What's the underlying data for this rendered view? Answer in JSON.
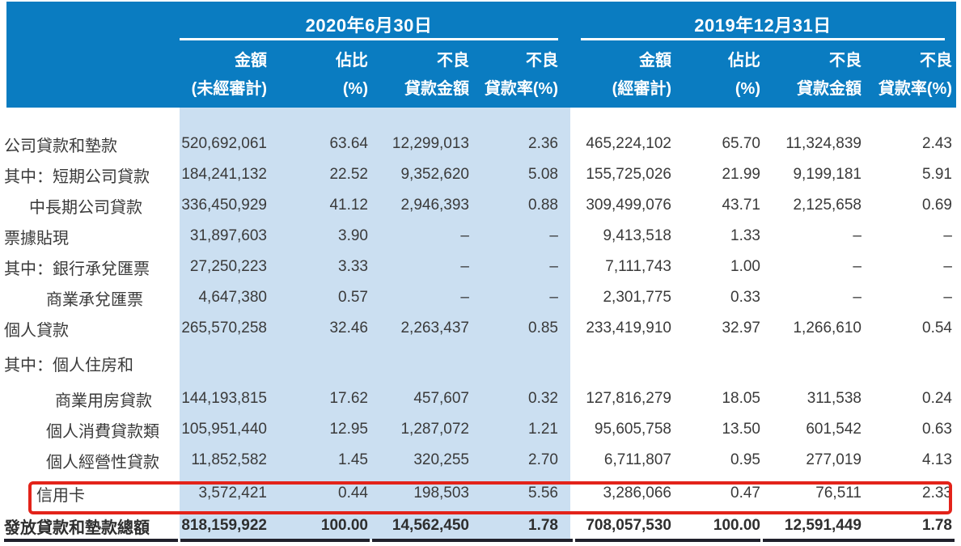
{
  "table": {
    "period_groups": [
      {
        "date": "2020年6月30日",
        "columns": [
          {
            "line1": "金額",
            "line2": "(未經審計)"
          },
          {
            "line1": "佔比",
            "line2": "(%)"
          },
          {
            "line1": "不良",
            "line2": "貸款金額"
          },
          {
            "line1": "不良",
            "line2": "貸款率(%)"
          }
        ]
      },
      {
        "date": "2019年12月31日",
        "columns": [
          {
            "line1": "金額",
            "line2": "(經審計)"
          },
          {
            "line1": "佔比",
            "line2": "(%)"
          },
          {
            "line1": "不良",
            "line2": "貸款金額"
          },
          {
            "line1": "不良",
            "line2": "貸款率(%)"
          }
        ]
      }
    ],
    "rows": [
      {
        "label": "公司貸款和墊款",
        "indent": 0,
        "bold": false,
        "highlighted": false,
        "values": [
          "520,692,061",
          "63.64",
          "12,299,013",
          "2.36",
          "465,224,102",
          "65.70",
          "11,324,839",
          "2.43"
        ]
      },
      {
        "label": "其中：短期公司貸款",
        "indent": 0,
        "bold": false,
        "highlighted": false,
        "values": [
          "184,241,132",
          "22.52",
          "9,352,620",
          "5.08",
          "155,725,026",
          "21.99",
          "9,199,181",
          "5.91"
        ]
      },
      {
        "label": "中長期公司貸款",
        "indent": 1,
        "bold": false,
        "highlighted": false,
        "values": [
          "336,450,929",
          "41.12",
          "2,946,393",
          "0.88",
          "309,499,076",
          "43.71",
          "2,125,658",
          "0.69"
        ]
      },
      {
        "label": "票據貼現",
        "indent": 0,
        "bold": false,
        "highlighted": false,
        "values": [
          "31,897,603",
          "3.90",
          "–",
          "–",
          "9,413,518",
          "1.33",
          "–",
          "–"
        ]
      },
      {
        "label": "其中：銀行承兌匯票",
        "indent": 0,
        "bold": false,
        "highlighted": false,
        "values": [
          "27,250,223",
          "3.33",
          "–",
          "–",
          "7,111,743",
          "1.00",
          "–",
          "–"
        ]
      },
      {
        "label": "商業承兌匯票",
        "indent": 2,
        "bold": false,
        "highlighted": false,
        "values": [
          "4,647,380",
          "0.57",
          "–",
          "–",
          "2,301,775",
          "0.33",
          "–",
          "–"
        ]
      },
      {
        "label": "個人貸款",
        "indent": 0,
        "bold": false,
        "highlighted": false,
        "values": [
          "265,570,258",
          "32.46",
          "2,263,437",
          "0.85",
          "233,419,910",
          "32.97",
          "1,266,610",
          "0.54"
        ]
      },
      {
        "label": "其中：個人住房和",
        "indent": 0,
        "bold": false,
        "highlighted": false,
        "values": [
          "",
          "",
          "",
          "",
          "",
          "",
          "",
          ""
        ]
      },
      {
        "label": "商業用房貸款",
        "indent": 3,
        "bold": false,
        "highlighted": false,
        "values": [
          "144,193,815",
          "17.62",
          "457,607",
          "0.32",
          "127,816,279",
          "18.05",
          "311,538",
          "0.24"
        ]
      },
      {
        "label": "個人消費貸款類",
        "indent": 2,
        "bold": false,
        "highlighted": false,
        "values": [
          "105,951,440",
          "12.95",
          "1,287,072",
          "1.21",
          "95,605,758",
          "13.50",
          "601,542",
          "0.63"
        ]
      },
      {
        "label": "個人經營性貸款",
        "indent": 2,
        "bold": false,
        "highlighted": false,
        "values": [
          "11,852,582",
          "1.45",
          "320,255",
          "2.70",
          "6,711,807",
          "0.95",
          "277,019",
          "4.13"
        ]
      },
      {
        "label": "信用卡",
        "indent": 4,
        "bold": false,
        "highlighted": true,
        "values": [
          "3,572,421",
          "0.44",
          "198,503",
          "5.56",
          "3,286,066",
          "0.47",
          "76,511",
          "2.33"
        ]
      },
      {
        "label": "發放貸款和墊款總額",
        "indent": 0,
        "bold": true,
        "highlighted": false,
        "values": [
          "818,159,922",
          "100.00",
          "14,562,450",
          "1.78",
          "708,057,530",
          "100.00",
          "12,591,449",
          "1.78"
        ]
      }
    ]
  },
  "colors": {
    "banner_blue": "#0a7cc1",
    "light_blue_band": "#cbdff1",
    "highlight_red": "#e3231a",
    "bottom_rule": "#20202b",
    "body_text": "#3a3a3a"
  }
}
